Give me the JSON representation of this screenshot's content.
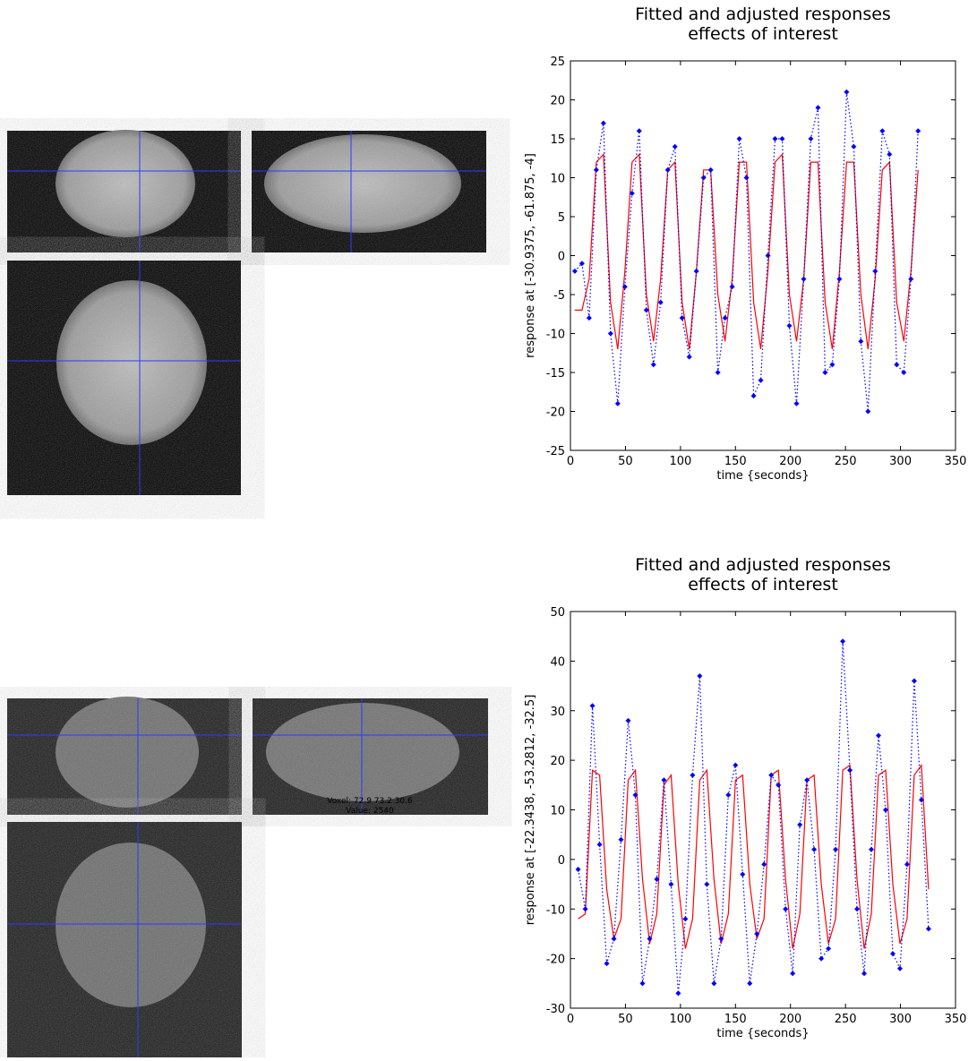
{
  "voxel_info": [
    "Voxel: 72.9 73.2 30.6",
    "Value: 2540"
  ],
  "chart_data": [
    {
      "type": "line",
      "title": "Fitted and adjusted responses",
      "subtitle": "effects of interest",
      "xlabel": "time {seconds}",
      "ylabel": "response at [-30.9375, -61.875, -4]",
      "xlim": [
        0,
        350
      ],
      "xticks": [
        0,
        50,
        100,
        150,
        200,
        250,
        300,
        350
      ],
      "ylim": [
        -25,
        25
      ],
      "yticks": [
        -25,
        -20,
        -15,
        -10,
        -5,
        0,
        5,
        10,
        15,
        20,
        25
      ],
      "x": [
        4,
        10.5,
        17,
        23.5,
        30,
        36.5,
        43,
        49.5,
        56,
        62.5,
        69,
        75.5,
        82,
        88.5,
        95,
        101.5,
        108,
        114.5,
        121,
        127.5,
        134,
        140.5,
        147,
        153.5,
        160,
        166.5,
        173,
        179.5,
        186,
        192.5,
        199,
        205.5,
        212,
        218.5,
        225,
        231.5,
        238,
        244.5,
        251,
        257.5,
        264,
        270.5,
        277,
        283.5,
        290,
        296.5,
        303,
        309.5,
        316
      ],
      "series": [
        {
          "color": "#ff0000",
          "line_style": "solid",
          "marker": false,
          "values": [
            -7,
            -7,
            -3,
            12,
            13,
            -6,
            -12,
            -2,
            12,
            13,
            -5,
            -11,
            -3,
            11,
            12,
            -6,
            -12,
            -2,
            11,
            11,
            -5,
            -11,
            -3,
            12,
            12,
            -6,
            -12,
            -2,
            12,
            13,
            -5,
            -11,
            -3,
            12,
            12,
            -6,
            -12,
            -2,
            12,
            12,
            -5,
            -12,
            -3,
            11,
            12,
            -6,
            -11,
            -2,
            11
          ]
        },
        {
          "color": "#0000ff",
          "line_style": "dotted",
          "marker": true,
          "values": [
            -2,
            -1,
            -8,
            11,
            17,
            -10,
            -19,
            -4,
            8,
            16,
            -7,
            -14,
            -6,
            11,
            14,
            -8,
            -13,
            -2,
            10,
            11,
            -15,
            -8,
            -4,
            15,
            10,
            -18,
            -16,
            0,
            15,
            15,
            -9,
            -19,
            -3,
            15,
            19,
            -15,
            -14,
            -3,
            21,
            14,
            -11,
            -20,
            -2,
            16,
            13,
            -14,
            -15,
            -3,
            16
          ]
        }
      ]
    },
    {
      "type": "line",
      "title": "Fitted and adjusted responses",
      "subtitle": "effects of interest",
      "xlabel": "time {seconds}",
      "ylabel": "response at [-22.3438, -53.2812, -32.5]",
      "xlim": [
        0,
        350
      ],
      "xticks": [
        0,
        50,
        100,
        150,
        200,
        250,
        300,
        350
      ],
      "ylim": [
        -30,
        50
      ],
      "yticks": [
        -30,
        -20,
        -10,
        0,
        10,
        20,
        30,
        40,
        50
      ],
      "x": [
        7,
        13.5,
        20,
        26.5,
        33,
        39.5,
        46,
        52.5,
        59,
        65.5,
        72,
        78.5,
        85,
        91.5,
        98,
        104.5,
        111,
        117.5,
        124,
        130.5,
        137,
        143.5,
        150,
        156.5,
        163,
        169.5,
        176,
        182.5,
        189,
        195.5,
        202,
        208.5,
        215,
        221.5,
        228,
        234.5,
        241,
        247.5,
        254,
        260.5,
        267,
        273.5,
        280,
        286.5,
        293,
        299.5,
        306,
        312.5,
        319,
        325.5
      ],
      "series": [
        {
          "color": "#ff0000",
          "line_style": "solid",
          "marker": false,
          "values": [
            -12,
            -11,
            18,
            17,
            -6,
            -16,
            -12,
            16,
            18,
            -4,
            -17,
            -11,
            15,
            17,
            -5,
            -18,
            -12,
            16,
            18,
            -4,
            -17,
            -11,
            16,
            17,
            -5,
            -16,
            -12,
            17,
            18,
            -4,
            -18,
            -11,
            16,
            17,
            -5,
            -17,
            -12,
            18,
            19,
            -4,
            -18,
            -11,
            17,
            18,
            -5,
            -17,
            -12,
            17,
            19,
            -6
          ]
        },
        {
          "color": "#0000ff",
          "line_style": "dotted",
          "marker": true,
          "values": [
            -2,
            -10,
            31,
            3,
            -21,
            -16,
            4,
            28,
            13,
            -25,
            -16,
            -4,
            16,
            -5,
            -27,
            -12,
            17,
            37,
            -5,
            -25,
            -16,
            13,
            19,
            -3,
            -25,
            -15,
            -1,
            17,
            15,
            -10,
            -23,
            7,
            16,
            2,
            -20,
            -18,
            2,
            44,
            18,
            -10,
            -23,
            2,
            25,
            10,
            -19,
            -22,
            -1,
            36,
            12,
            -14
          ]
        }
      ]
    }
  ]
}
